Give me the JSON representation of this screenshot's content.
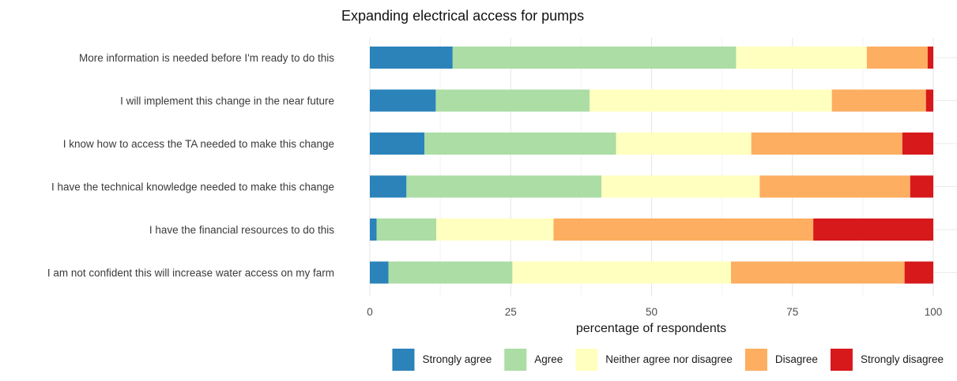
{
  "chart_data": {
    "type": "bar",
    "orientation": "horizontal",
    "stacked": true,
    "title": "Expanding electrical access for pumps",
    "xlabel": "percentage of respondents",
    "ylabel": "",
    "xlim": [
      0,
      100
    ],
    "xticks": [
      0,
      25,
      50,
      75,
      100
    ],
    "grid": true,
    "legend_position": "bottom",
    "categories": [
      "More information is needed before I'm ready to do this",
      "I will implement this change in the near future",
      "I know how to access the TA needed to make this change",
      "I have the technical knowledge needed to make this change",
      "I have the financial resources to do this",
      "I am not confident this will increase water access on my farm"
    ],
    "series": [
      {
        "name": "Strongly agree",
        "color": "#2b83ba",
        "values": [
          14.7,
          11.7,
          9.7,
          6.5,
          1.2,
          3.3
        ]
      },
      {
        "name": "Agree",
        "color": "#abdda4",
        "values": [
          50.3,
          27.3,
          34.0,
          34.6,
          10.6,
          22.0
        ]
      },
      {
        "name": "Neither agree nor disagree",
        "color": "#ffffbf",
        "values": [
          23.2,
          43.0,
          24.0,
          28.1,
          20.8,
          38.8
        ]
      },
      {
        "name": "Disagree",
        "color": "#fdae61",
        "values": [
          10.8,
          16.7,
          26.8,
          26.7,
          46.1,
          30.8
        ]
      },
      {
        "name": "Strongly disagree",
        "color": "#d7191c",
        "values": [
          1.0,
          1.3,
          5.5,
          4.1,
          21.3,
          5.1
        ]
      }
    ]
  }
}
